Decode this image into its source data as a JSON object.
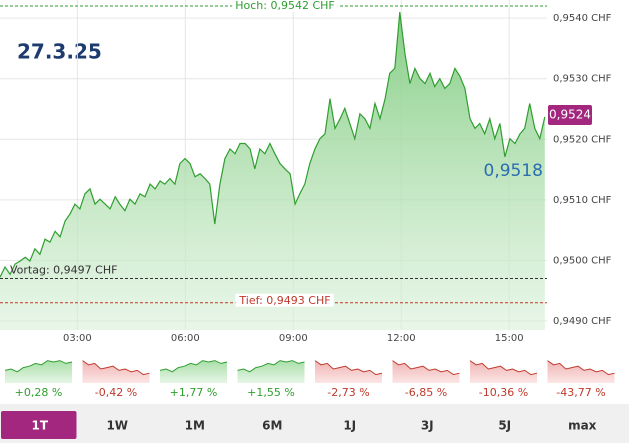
{
  "chart_data": {
    "type": "area",
    "date": "27.3.25",
    "x": [
      0.85,
      0.99,
      1.13,
      1.27,
      1.41,
      1.55,
      1.68,
      1.82,
      1.96,
      2.1,
      2.24,
      2.38,
      2.52,
      2.66,
      2.8,
      2.93,
      3.07,
      3.21,
      3.35,
      3.49,
      3.63,
      3.77,
      3.91,
      4.05,
      4.18,
      4.32,
      4.46,
      4.6,
      4.74,
      4.88,
      5.02,
      5.16,
      5.3,
      5.43,
      5.57,
      5.71,
      5.85,
      5.99,
      6.13,
      6.27,
      6.41,
      6.55,
      6.68,
      6.82,
      6.96,
      7.1,
      7.24,
      7.38,
      7.52,
      7.66,
      7.8,
      7.93,
      8.07,
      8.21,
      8.35,
      8.49,
      8.63,
      8.77,
      8.91,
      9.05,
      9.18,
      9.32,
      9.46,
      9.6,
      9.74,
      9.88,
      10.02,
      10.16,
      10.3,
      10.43,
      10.57,
      10.71,
      10.85,
      10.99,
      11.13,
      11.27,
      11.41,
      11.55,
      11.68,
      11.82,
      11.96,
      12.1,
      12.24,
      12.38,
      12.52,
      12.66,
      12.8,
      12.93,
      13.07,
      13.21,
      13.35,
      13.49,
      13.63,
      13.77,
      13.91,
      14.05,
      14.18,
      14.32,
      14.46,
      14.6,
      14.74,
      14.88,
      15.02,
      15.16,
      15.3,
      15.43,
      15.57,
      15.71,
      15.85,
      15.99
    ],
    "series": [
      {
        "color": "#2f9e2f",
        "values": [
          0.94972,
          0.94989,
          0.94977,
          0.94994,
          0.94999,
          0.95005,
          0.94999,
          0.95019,
          0.9501,
          0.95035,
          0.9503,
          0.95048,
          0.95039,
          0.95065,
          0.95077,
          0.95093,
          0.95085,
          0.9511,
          0.95118,
          0.95093,
          0.95101,
          0.95093,
          0.95085,
          0.95105,
          0.95093,
          0.95082,
          0.95101,
          0.95093,
          0.9511,
          0.95105,
          0.95126,
          0.95118,
          0.95131,
          0.95126,
          0.95135,
          0.95126,
          0.9516,
          0.95168,
          0.9516,
          0.95138,
          0.95143,
          0.95135,
          0.95126,
          0.9506,
          0.95126,
          0.95168,
          0.95184,
          0.95176,
          0.95193,
          0.95193,
          0.95184,
          0.95151,
          0.95184,
          0.95176,
          0.95193,
          0.95176,
          0.9516,
          0.95151,
          0.95143,
          0.95093,
          0.9511,
          0.95126,
          0.9516,
          0.95184,
          0.95201,
          0.95209,
          0.95267,
          0.95218,
          0.95234,
          0.95251,
          0.95226,
          0.95201,
          0.95242,
          0.95234,
          0.95218,
          0.95259,
          0.95234,
          0.95267,
          0.95309,
          0.95317,
          0.9541,
          0.95342,
          0.95292,
          0.95317,
          0.953,
          0.95292,
          0.95309,
          0.95287,
          0.953,
          0.95284,
          0.95292,
          0.95317,
          0.95304,
          0.95284,
          0.95234,
          0.95218,
          0.95226,
          0.95209,
          0.95234,
          0.95201,
          0.95226,
          0.95171,
          0.95201,
          0.95193,
          0.95209,
          0.95218,
          0.95259,
          0.95218,
          0.95201,
          0.95237
        ]
      }
    ],
    "xlim": [
      0.85,
      16.05
    ],
    "xticks": [
      {
        "value": 3,
        "label": "03:00"
      },
      {
        "value": 6,
        "label": "06:00"
      },
      {
        "value": 9,
        "label": "09:00"
      },
      {
        "value": 12,
        "label": "12:00"
      },
      {
        "value": 15,
        "label": "15:00"
      }
    ],
    "ylim": [
      0.94885,
      0.9543
    ],
    "yticks": [
      {
        "value": 0.949,
        "label": "0,9490 CHF"
      },
      {
        "value": 0.95,
        "label": "0,9500 CHF"
      },
      {
        "value": 0.951,
        "label": "0,9510 CHF"
      },
      {
        "value": 0.952,
        "label": "0,9520 CHF"
      },
      {
        "value": 0.953,
        "label": "0,9530 CHF"
      },
      {
        "value": 0.954,
        "label": "0,9540 CHF"
      }
    ],
    "grid": true,
    "reference_lines": [
      {
        "value": 0.9542,
        "label": "Hoch: 0,9542 CHF",
        "color": "#2f9e2f",
        "anchor": "middle"
      },
      {
        "value": 0.9497,
        "label": "Vortag: 0,9497 CHF",
        "color": "#333333",
        "anchor": "start"
      },
      {
        "value": 0.9493,
        "label": "Tief: 0,9493 CHF",
        "color": "#c0392b",
        "anchor": "middle"
      }
    ],
    "last_value": {
      "value": 0.9524,
      "label": "0,9524",
      "color": "#a3267f"
    },
    "quote": {
      "value": 0.9518,
      "label": "0,9518",
      "color": "#2a6db0"
    }
  },
  "periods": [
    {
      "label": "+0,28 %",
      "color": "#2f9e2f"
    },
    {
      "label": "-0,42 %",
      "color": "#c0392b"
    },
    {
      "label": "+1,77 %",
      "color": "#2f9e2f"
    },
    {
      "label": "+1,55 %",
      "color": "#2f9e2f"
    },
    {
      "label": "-2,73 %",
      "color": "#c0392b"
    },
    {
      "label": "-6,85 %",
      "color": "#c0392b"
    },
    {
      "label": "-10,36 %",
      "color": "#c0392b"
    },
    {
      "label": "-43,77 %",
      "color": "#c0392b"
    }
  ],
  "tabs": [
    "1T",
    "1W",
    "1M",
    "6M",
    "1J",
    "3J",
    "5J",
    "max"
  ],
  "active_tab": 0
}
